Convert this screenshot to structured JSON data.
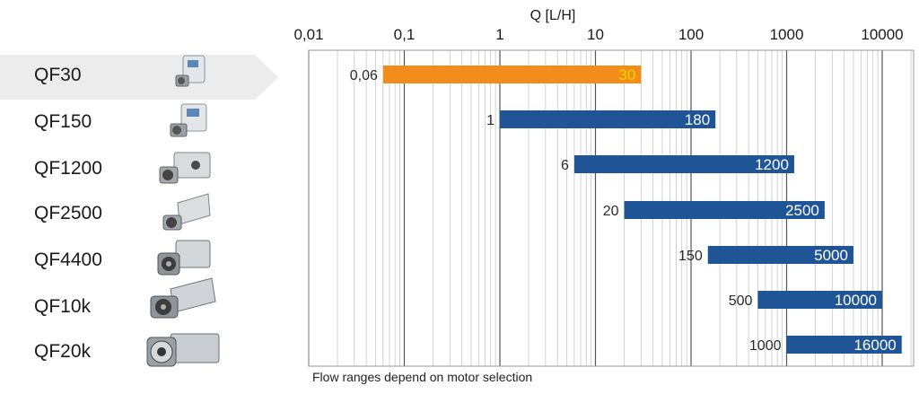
{
  "chart_data": {
    "type": "bar",
    "orientation": "horizontal",
    "scale": "log",
    "xlabel": "Q [L/H]",
    "xlim": [
      0.01,
      20000
    ],
    "x_ticks": [
      "0,01",
      "0,1",
      "1",
      "10",
      "100",
      "1000",
      "10000"
    ],
    "grid": true,
    "categories": [
      "QF30",
      "QF150",
      "QF1200",
      "QF2500",
      "QF4400",
      "QF10k",
      "QF20k"
    ],
    "series": [
      {
        "ranges": [
          {
            "min": 0.06,
            "max": 30,
            "min_label": "0,06",
            "max_label": "30",
            "color": "#f28c1b",
            "label_color": "#ffd400"
          },
          {
            "min": 1,
            "max": 180,
            "min_label": "1",
            "max_label": "180",
            "color": "#1f5596",
            "label_color": "#ffffff"
          },
          {
            "min": 6,
            "max": 1200,
            "min_label": "6",
            "max_label": "1200",
            "color": "#1f5596",
            "label_color": "#ffffff"
          },
          {
            "min": 20,
            "max": 2500,
            "min_label": "20",
            "max_label": "2500",
            "color": "#1f5596",
            "label_color": "#ffffff"
          },
          {
            "min": 150,
            "max": 5000,
            "min_label": "150",
            "max_label": "5000",
            "color": "#1f5596",
            "label_color": "#ffffff"
          },
          {
            "min": 500,
            "max": 10000,
            "min_label": "500",
            "max_label": "10000",
            "color": "#1f5596",
            "label_color": "#ffffff"
          },
          {
            "min": 1000,
            "max": 16000,
            "min_label": "1000",
            "max_label": "16000",
            "color": "#1f5596",
            "label_color": "#ffffff"
          }
        ]
      }
    ],
    "highlighted_category": "QF30",
    "colors": {
      "highlight_bg": "#ececec",
      "grid_major": "#555555",
      "grid_minor": "#c8c8c8",
      "frame": "#9a9a9a"
    }
  },
  "rows": [
    {
      "label": "QF30",
      "icon": "pump-qf30-icon"
    },
    {
      "label": "QF150",
      "icon": "pump-qf150-icon"
    },
    {
      "label": "QF1200",
      "icon": "pump-qf1200-icon"
    },
    {
      "label": "QF2500",
      "icon": "pump-qf2500-icon"
    },
    {
      "label": "QF4400",
      "icon": "pump-qf4400-icon"
    },
    {
      "label": "QF10k",
      "icon": "pump-qf10k-icon"
    },
    {
      "label": "QF20k",
      "icon": "pump-qf20k-icon"
    }
  ],
  "footer": {
    "note": "Flow ranges depend on motor selection"
  }
}
